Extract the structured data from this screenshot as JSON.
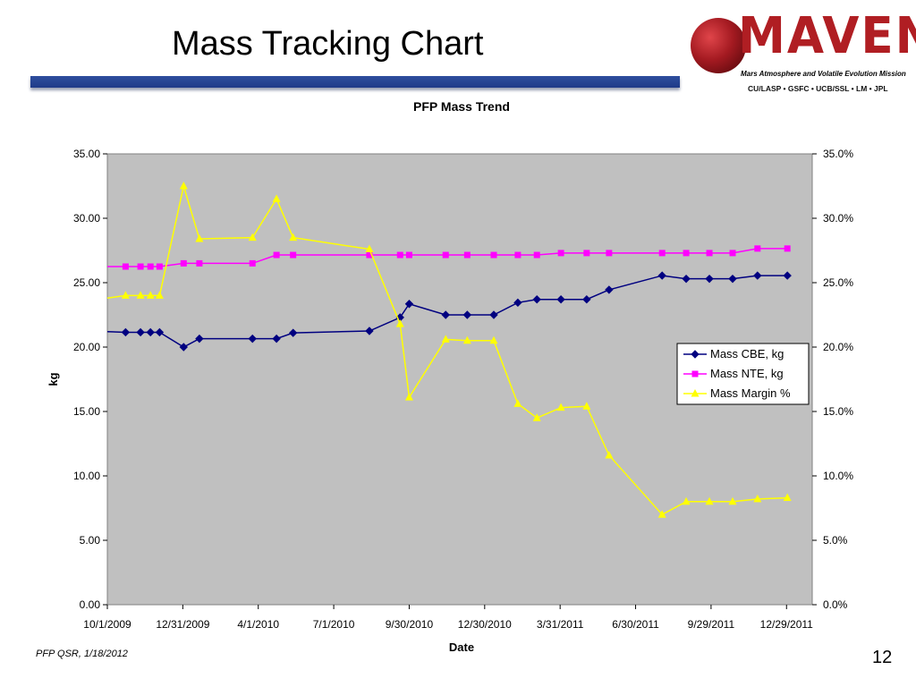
{
  "slide": {
    "title": "Mass Tracking Chart",
    "footer": "PFP QSR, 1/18/2012",
    "page_number": "12"
  },
  "logo": {
    "word": "MAVEN",
    "subtitle": "Mars Atmosphere and Volatile Evolution Mission",
    "partners": "CU/LASP • GSFC • UCB/SSL • LM • JPL",
    "color": "#b01e23"
  },
  "chart_data": {
    "type": "line",
    "title": "PFP Mass Trend",
    "xlabel": "Date",
    "ylabel": "kg",
    "xlim": [
      "2009-10-01",
      "2012-01-29"
    ],
    "ylim": [
      0,
      35
    ],
    "y2lim": [
      0,
      35
    ],
    "x_ticks": [
      "10/1/2009",
      "12/31/2009",
      "4/1/2010",
      "7/1/2010",
      "9/30/2010",
      "12/30/2010",
      "3/31/2011",
      "6/30/2011",
      "9/29/2011",
      "12/29/2011"
    ],
    "y_ticks": [
      "0.00",
      "5.00",
      "10.00",
      "15.00",
      "20.00",
      "25.00",
      "30.00",
      "35.00"
    ],
    "y2_ticks": [
      "0.0%",
      "5.0%",
      "10.0%",
      "15.0%",
      "20.0%",
      "25.0%",
      "30.0%",
      "35.0%"
    ],
    "legend_position": "right",
    "plot_background": "#c0c0c0",
    "series": [
      {
        "name": "Mass CBE, kg",
        "color": "#000080",
        "marker": "diamond",
        "axis": "left",
        "x": [
          "2009-10-01",
          "2009-10-23",
          "2009-11-10",
          "2009-11-22",
          "2009-12-03",
          "2010-01-01",
          "2010-01-20",
          "2010-03-25",
          "2010-04-23",
          "2010-05-13",
          "2010-08-13",
          "2010-09-19",
          "2010-09-30",
          "2010-11-13",
          "2010-12-09",
          "2011-01-10",
          "2011-02-08",
          "2011-03-03",
          "2011-04-01",
          "2011-05-02",
          "2011-05-29",
          "2011-08-01",
          "2011-08-30",
          "2011-09-27",
          "2011-10-25",
          "2011-11-24",
          "2011-12-30"
        ],
        "values": [
          21.2,
          21.15,
          21.15,
          21.15,
          21.15,
          20.0,
          20.65,
          20.65,
          20.65,
          21.1,
          21.25,
          22.3,
          23.35,
          22.5,
          22.5,
          22.5,
          23.45,
          23.7,
          23.7,
          23.7,
          24.45,
          25.55,
          25.3,
          25.3,
          25.3,
          25.55,
          25.55
        ]
      },
      {
        "name": "Mass NTE, kg",
        "color": "#ff00ff",
        "marker": "square",
        "axis": "left",
        "x": [
          "2009-10-01",
          "2009-10-23",
          "2009-11-10",
          "2009-11-22",
          "2009-12-03",
          "2010-01-01",
          "2010-01-20",
          "2010-03-25",
          "2010-04-23",
          "2010-05-13",
          "2010-08-13",
          "2010-09-19",
          "2010-09-30",
          "2010-11-13",
          "2010-12-09",
          "2011-01-10",
          "2011-02-08",
          "2011-03-03",
          "2011-04-01",
          "2011-05-02",
          "2011-05-29",
          "2011-08-01",
          "2011-08-30",
          "2011-09-27",
          "2011-10-25",
          "2011-11-24",
          "2011-12-30"
        ],
        "values": [
          26.25,
          26.25,
          26.25,
          26.25,
          26.25,
          26.5,
          26.5,
          26.5,
          27.15,
          27.15,
          27.15,
          27.15,
          27.15,
          27.15,
          27.15,
          27.15,
          27.15,
          27.15,
          27.3,
          27.3,
          27.3,
          27.3,
          27.3,
          27.3,
          27.3,
          27.65,
          27.65
        ]
      },
      {
        "name": "Mass Margin %",
        "color": "#ffff00",
        "marker": "triangle",
        "axis": "right",
        "x": [
          "2009-10-01",
          "2009-10-23",
          "2009-11-10",
          "2009-11-22",
          "2009-12-03",
          "2010-01-01",
          "2010-01-20",
          "2010-03-25",
          "2010-04-23",
          "2010-05-13",
          "2010-08-13",
          "2010-09-19",
          "2010-09-30",
          "2010-11-13",
          "2010-12-09",
          "2011-01-10",
          "2011-02-08",
          "2011-03-03",
          "2011-04-01",
          "2011-05-02",
          "2011-05-29",
          "2011-08-01",
          "2011-08-30",
          "2011-09-27",
          "2011-10-25",
          "2011-11-24",
          "2011-12-30"
        ],
        "values": [
          23.8,
          24.0,
          24.0,
          24.0,
          24.0,
          32.5,
          28.4,
          28.5,
          31.5,
          28.5,
          27.6,
          21.8,
          16.1,
          20.6,
          20.5,
          20.5,
          15.6,
          14.5,
          15.3,
          15.4,
          11.6,
          7.0,
          8.0,
          8.0,
          8.0,
          8.2,
          8.3
        ]
      }
    ]
  }
}
